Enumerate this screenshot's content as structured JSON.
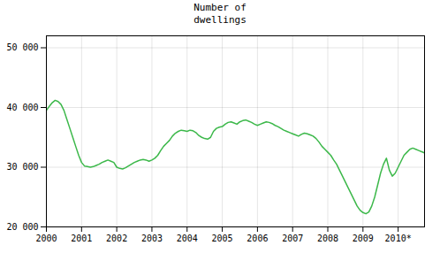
{
  "chart_data": {
    "type": "line",
    "title": "Number of\ndwellings",
    "color": "#3cb84a",
    "grid": true,
    "xlim": [
      2000,
      2010.75
    ],
    "xticks": [
      2000,
      2001,
      2002,
      2003,
      2004,
      2005,
      2006,
      2007,
      2008,
      2009,
      {
        "value": 2010,
        "label": "2010*"
      }
    ],
    "ylim": [
      20000,
      52000
    ],
    "yticks": [
      {
        "value": 20000,
        "label": "20 000"
      },
      {
        "value": 30000,
        "label": "30 000"
      },
      {
        "value": 40000,
        "label": "40 000"
      },
      {
        "value": 50000,
        "label": "50 000"
      }
    ],
    "x": [
      2000.0,
      2000.083,
      2000.167,
      2000.25,
      2000.333,
      2000.417,
      2000.5,
      2000.583,
      2000.667,
      2000.75,
      2000.833,
      2000.917,
      2001.0,
      2001.083,
      2001.167,
      2001.25,
      2001.333,
      2001.417,
      2001.5,
      2001.583,
      2001.667,
      2001.75,
      2001.833,
      2001.917,
      2002.0,
      2002.083,
      2002.167,
      2002.25,
      2002.333,
      2002.417,
      2002.5,
      2002.583,
      2002.667,
      2002.75,
      2002.833,
      2002.917,
      2003.0,
      2003.083,
      2003.167,
      2003.25,
      2003.333,
      2003.417,
      2003.5,
      2003.583,
      2003.667,
      2003.75,
      2003.833,
      2003.917,
      2004.0,
      2004.083,
      2004.167,
      2004.25,
      2004.333,
      2004.417,
      2004.5,
      2004.583,
      2004.667,
      2004.75,
      2004.833,
      2004.917,
      2005.0,
      2005.083,
      2005.167,
      2005.25,
      2005.333,
      2005.417,
      2005.5,
      2005.583,
      2005.667,
      2005.75,
      2005.833,
      2005.917,
      2006.0,
      2006.083,
      2006.167,
      2006.25,
      2006.333,
      2006.417,
      2006.5,
      2006.583,
      2006.667,
      2006.75,
      2006.833,
      2006.917,
      2007.0,
      2007.083,
      2007.167,
      2007.25,
      2007.333,
      2007.417,
      2007.5,
      2007.583,
      2007.667,
      2007.75,
      2007.833,
      2007.917,
      2008.0,
      2008.083,
      2008.167,
      2008.25,
      2008.333,
      2008.417,
      2008.5,
      2008.583,
      2008.667,
      2008.75,
      2008.833,
      2008.917,
      2009.0,
      2009.083,
      2009.167,
      2009.25,
      2009.333,
      2009.417,
      2009.5,
      2009.583,
      2009.667,
      2009.75,
      2009.833,
      2009.917,
      2010.0,
      2010.083,
      2010.167,
      2010.25,
      2010.333,
      2010.417,
      2010.5,
      2010.583,
      2010.667,
      2010.75
    ],
    "values": [
      39500,
      40200,
      40800,
      41200,
      41000,
      40500,
      39500,
      38000,
      36500,
      35000,
      33500,
      32000,
      30800,
      30200,
      30100,
      30000,
      30100,
      30300,
      30500,
      30800,
      31000,
      31200,
      31000,
      30800,
      30000,
      29800,
      29700,
      29900,
      30200,
      30500,
      30800,
      31000,
      31200,
      31300,
      31200,
      31000,
      31200,
      31500,
      32000,
      32800,
      33500,
      34000,
      34500,
      35200,
      35700,
      36000,
      36200,
      36100,
      36000,
      36200,
      36100,
      35800,
      35300,
      35000,
      34800,
      34700,
      35000,
      36000,
      36500,
      36700,
      36800,
      37200,
      37500,
      37600,
      37400,
      37200,
      37600,
      37800,
      37900,
      37700,
      37500,
      37200,
      37000,
      37200,
      37400,
      37600,
      37500,
      37300,
      37000,
      36800,
      36500,
      36200,
      36000,
      35800,
      35600,
      35400,
      35200,
      35500,
      35700,
      35600,
      35400,
      35200,
      34800,
      34200,
      33500,
      33000,
      32500,
      32000,
      31200,
      30500,
      29500,
      28500,
      27500,
      26500,
      25500,
      24500,
      23500,
      22800,
      22400,
      22200,
      22500,
      23500,
      25000,
      27000,
      29000,
      30500,
      31500,
      29500,
      28500,
      29000,
      30000,
      31000,
      32000,
      32500,
      33000,
      33200,
      33000,
      32800,
      32600,
      32400
    ]
  }
}
